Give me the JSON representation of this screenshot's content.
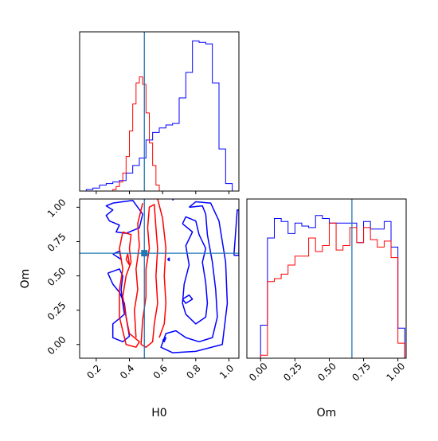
{
  "colors": {
    "series_a": "#ff0000",
    "series_b": "#0000ff",
    "truth": "#1f77b4",
    "axes": "#000000"
  },
  "chart_data": {
    "type": "corner",
    "parameters": [
      "H0",
      "Om"
    ],
    "truths": {
      "H0": 0.49,
      "Om": 0.665
    },
    "panels": [
      {
        "id": "hist-h0",
        "type": "histogram",
        "xlim": [
          0.1,
          1.06
        ],
        "ylim": [
          0,
          1.06
        ],
        "y_ticks_shown": false,
        "bin_edges": [
          0.1,
          0.14,
          0.18,
          0.22,
          0.26,
          0.3,
          0.34,
          0.38,
          0.42,
          0.46,
          0.5,
          0.54,
          0.58,
          0.62,
          0.66,
          0.7,
          0.74,
          0.78,
          0.82,
          0.86,
          0.9,
          0.94,
          0.98,
          1.02
        ],
        "series": [
          {
            "color_key": "series_b",
            "heights": [
              0.0,
              0.01,
              0.02,
              0.04,
              0.05,
              0.06,
              0.07,
              0.12,
              0.17,
              0.22,
              0.34,
              0.39,
              0.42,
              0.44,
              0.45,
              0.62,
              0.79,
              1.0,
              0.99,
              0.98,
              0.72,
              0.28,
              0.05
            ]
          },
          {
            "color_key": "series_a",
            "edges": [
              0.3,
              0.32,
              0.34,
              0.36,
              0.38,
              0.4,
              0.42,
              0.44,
              0.46,
              0.48,
              0.5,
              0.52,
              0.54,
              0.56,
              0.58
            ],
            "heights": [
              0.01,
              0.03,
              0.06,
              0.12,
              0.23,
              0.4,
              0.58,
              0.72,
              0.76,
              0.71,
              0.52,
              0.32,
              0.17,
              0.04
            ]
          }
        ]
      },
      {
        "id": "contour-h0-om",
        "type": "contour",
        "xlabel": "H0",
        "ylabel": "Om",
        "xlim": [
          0.1,
          1.06
        ],
        "ylim": [
          -0.1,
          1.06
        ],
        "x_ticks": [
          "0.2",
          "0.4",
          "0.6",
          "0.8",
          "1.0"
        ],
        "x_tick_values": [
          0.2,
          0.4,
          0.6,
          0.8,
          1.0
        ],
        "y_ticks": [
          "0.00",
          "0.25",
          "0.50",
          "0.75",
          "1.00"
        ],
        "y_tick_values": [
          0.0,
          0.25,
          0.5,
          0.75,
          1.0
        ],
        "series": [
          {
            "color_key": "series_b",
            "contours": [
              [
                [
                  0.3,
                  1.03
                ],
                [
                  0.42,
                  1.05
                ],
                [
                  0.48,
                  0.95
                ],
                [
                  0.46,
                  0.85
                ],
                [
                  0.38,
                  0.81
                ],
                [
                  0.32,
                  0.82
                ],
                [
                  0.34,
                  0.87
                ],
                [
                  0.28,
                  0.9
                ],
                [
                  0.26,
                  0.94
                ],
                [
                  0.3,
                  0.98
                ],
                [
                  0.26,
                  1.01
                ],
                [
                  0.3,
                  1.03
                ]
              ],
              [
                [
                  0.3,
                  0.66
                ],
                [
                  0.35,
                  0.62
                ],
                [
                  0.34,
                  0.68
                ],
                [
                  0.3,
                  0.66
                ]
              ],
              [
                [
                  0.27,
                  0.52
                ],
                [
                  0.34,
                  0.55
                ],
                [
                  0.36,
                  0.5
                ],
                [
                  0.35,
                  0.4
                ],
                [
                  0.36,
                  0.3
                ],
                [
                  0.37,
                  0.22
                ],
                [
                  0.3,
                  0.15
                ],
                [
                  0.3,
                  0.05
                ],
                [
                  0.36,
                  0.02
                ],
                [
                  0.4,
                  0.06
                ],
                [
                  0.38,
                  0.2
                ],
                [
                  0.37,
                  0.3
                ],
                [
                  0.34,
                  0.38
                ],
                [
                  0.3,
                  0.44
                ],
                [
                  0.27,
                  0.52
                ]
              ],
              [
                [
                  0.76,
                  1.0
                ],
                [
                  0.84,
                  1.01
                ],
                [
                  0.86,
                  0.95
                ],
                [
                  0.87,
                  0.8
                ],
                [
                  0.9,
                  0.6
                ],
                [
                  0.92,
                  0.4
                ],
                [
                  0.93,
                  0.2
                ],
                [
                  0.9,
                  0.05
                ],
                [
                  0.82,
                  0.02
                ],
                [
                  0.74,
                  0.05
                ],
                [
                  0.68,
                  0.1
                ],
                [
                  0.62,
                  0.08
                ],
                [
                  0.59,
                  -0.02
                ],
                [
                  0.66,
                  -0.06
                ],
                [
                  0.8,
                  -0.05
                ],
                [
                  0.96,
                  0.0
                ],
                [
                  0.99,
                  0.3
                ],
                [
                  0.98,
                  0.6
                ],
                [
                  0.94,
                  0.9
                ],
                [
                  0.89,
                  1.03
                ],
                [
                  0.8,
                  1.04
                ],
                [
                  0.76,
                  1.0
                ]
              ],
              [
                [
                  0.72,
                  0.88
                ],
                [
                  0.78,
                  0.82
                ],
                [
                  0.74,
                  0.72
                ],
                [
                  0.76,
                  0.58
                ],
                [
                  0.73,
                  0.44
                ],
                [
                  0.72,
                  0.3
                ],
                [
                  0.74,
                  0.22
                ],
                [
                  0.8,
                  0.15
                ],
                [
                  0.86,
                  0.2
                ],
                [
                  0.87,
                  0.3
                ],
                [
                  0.86,
                  0.45
                ],
                [
                  0.84,
                  0.6
                ],
                [
                  0.86,
                  0.7
                ],
                [
                  0.82,
                  0.8
                ],
                [
                  0.8,
                  0.9
                ],
                [
                  0.74,
                  0.93
                ],
                [
                  0.72,
                  0.88
                ]
              ],
              [
                [
                  0.72,
                  0.33
                ],
                [
                  0.76,
                  0.36
                ],
                [
                  0.78,
                  0.33
                ],
                [
                  0.74,
                  0.3
                ],
                [
                  0.72,
                  0.33
                ]
              ],
              [
                [
                  1.03,
                  0.65
                ],
                [
                  1.05,
                  0.98
                ],
                [
                  1.06,
                  0.98
                ],
                [
                  1.06,
                  0.65
                ],
                [
                  1.03,
                  0.65
                ]
              ],
              [
                [
                  0.6,
                  0.03
                ],
                [
                  0.62,
                  0.05
                ],
                [
                  0.61,
                  0.02
                ],
                [
                  0.6,
                  0.03
                ]
              ],
              [
                [
                  0.63,
                  0.62
                ],
                [
                  0.64,
                  0.63
                ],
                [
                  0.64,
                  0.61
                ],
                [
                  0.63,
                  0.62
                ]
              ],
              [
                [
                  0.66,
                  1.05
                ],
                [
                  0.67,
                  1.07
                ]
              ]
            ]
          },
          {
            "color_key": "series_a",
            "contours": [
              [
                [
                  0.36,
                  0.82
                ],
                [
                  0.41,
                  0.8
                ],
                [
                  0.4,
                  0.7
                ],
                [
                  0.41,
                  0.6
                ],
                [
                  0.38,
                  0.5
                ],
                [
                  0.36,
                  0.35
                ],
                [
                  0.38,
                  0.2
                ],
                [
                  0.4,
                  0.08
                ],
                [
                  0.46,
                  0.02
                ],
                [
                  0.44,
                  -0.02
                ],
                [
                  0.38,
                  0.0
                ],
                [
                  0.36,
                  0.1
                ],
                [
                  0.34,
                  0.2
                ],
                [
                  0.34,
                  0.4
                ],
                [
                  0.36,
                  0.55
                ],
                [
                  0.34,
                  0.7
                ],
                [
                  0.35,
                  0.76
                ],
                [
                  0.36,
                  0.82
                ]
              ],
              [
                [
                  0.47,
                  0.0
                ],
                [
                  0.48,
                  0.18
                ],
                [
                  0.5,
                  0.35
                ],
                [
                  0.5,
                  0.55
                ],
                [
                  0.52,
                  0.7
                ],
                [
                  0.51,
                  0.85
                ],
                [
                  0.52,
                  1.0
                ],
                [
                  0.55,
                  1.02
                ],
                [
                  0.56,
                  0.85
                ],
                [
                  0.57,
                  0.7
                ],
                [
                  0.56,
                  0.5
                ],
                [
                  0.57,
                  0.3
                ],
                [
                  0.55,
                  0.15
                ],
                [
                  0.54,
                  0.02
                ],
                [
                  0.5,
                  -0.02
                ],
                [
                  0.47,
                  0.0
                ]
              ],
              [
                [
                  0.44,
                  0.05
                ],
                [
                  0.43,
                  0.25
                ],
                [
                  0.45,
                  0.4
                ],
                [
                  0.44,
                  0.55
                ],
                [
                  0.46,
                  0.72
                ],
                [
                  0.45,
                  0.88
                ],
                [
                  0.48,
                  1.03
                ]
              ],
              [
                [
                  0.57,
                  1.06
                ],
                [
                  0.6,
                  0.92
                ],
                [
                  0.62,
                  0.7
                ],
                [
                  0.61,
                  0.5
                ],
                [
                  0.62,
                  0.3
                ],
                [
                  0.61,
                  0.15
                ],
                [
                  0.58,
                  0.05
                ]
              ],
              [
                [
                  0.38,
                  0.62
                ],
                [
                  0.4,
                  0.58
                ],
                [
                  0.39,
                  0.66
                ],
                [
                  0.38,
                  0.62
                ]
              ]
            ]
          }
        ]
      },
      {
        "id": "hist-om",
        "type": "histogram",
        "xlabel": "Om",
        "xlim": [
          -0.1,
          1.06
        ],
        "ylim": [
          0,
          1.06
        ],
        "y_ticks_shown": false,
        "x_ticks": [
          "0.00",
          "0.25",
          "0.50",
          "0.75",
          "1.00"
        ],
        "x_tick_values": [
          0.0,
          0.25,
          0.5,
          0.75,
          1.0
        ],
        "bin_edges": [
          -0.04,
          0.0,
          0.05,
          0.1,
          0.15,
          0.2,
          0.25,
          0.3,
          0.35,
          0.4,
          0.45,
          0.5,
          0.55,
          0.6,
          0.65,
          0.7,
          0.75,
          0.8,
          0.85,
          0.9,
          0.95,
          1.0,
          1.05
        ],
        "series": [
          {
            "color_key": "series_b",
            "heights": [
              0.0,
              0.22,
              0.8,
              0.93,
              0.91,
              0.83,
              0.9,
              0.88,
              0.87,
              0.95,
              0.93,
              0.9,
              0.9,
              0.9,
              0.9,
              0.77,
              0.91,
              0.86,
              0.86,
              0.91,
              0.74,
              0.2
            ]
          },
          {
            "color_key": "series_a",
            "heights": [
              0.0,
              0.02,
              0.51,
              0.53,
              0.56,
              0.62,
              0.68,
              0.68,
              0.8,
              0.71,
              0.75,
              0.9,
              0.72,
              0.75,
              0.87,
              0.77,
              0.87,
              0.79,
              0.74,
              0.78,
              0.67,
              0.1
            ]
          }
        ]
      }
    ]
  }
}
